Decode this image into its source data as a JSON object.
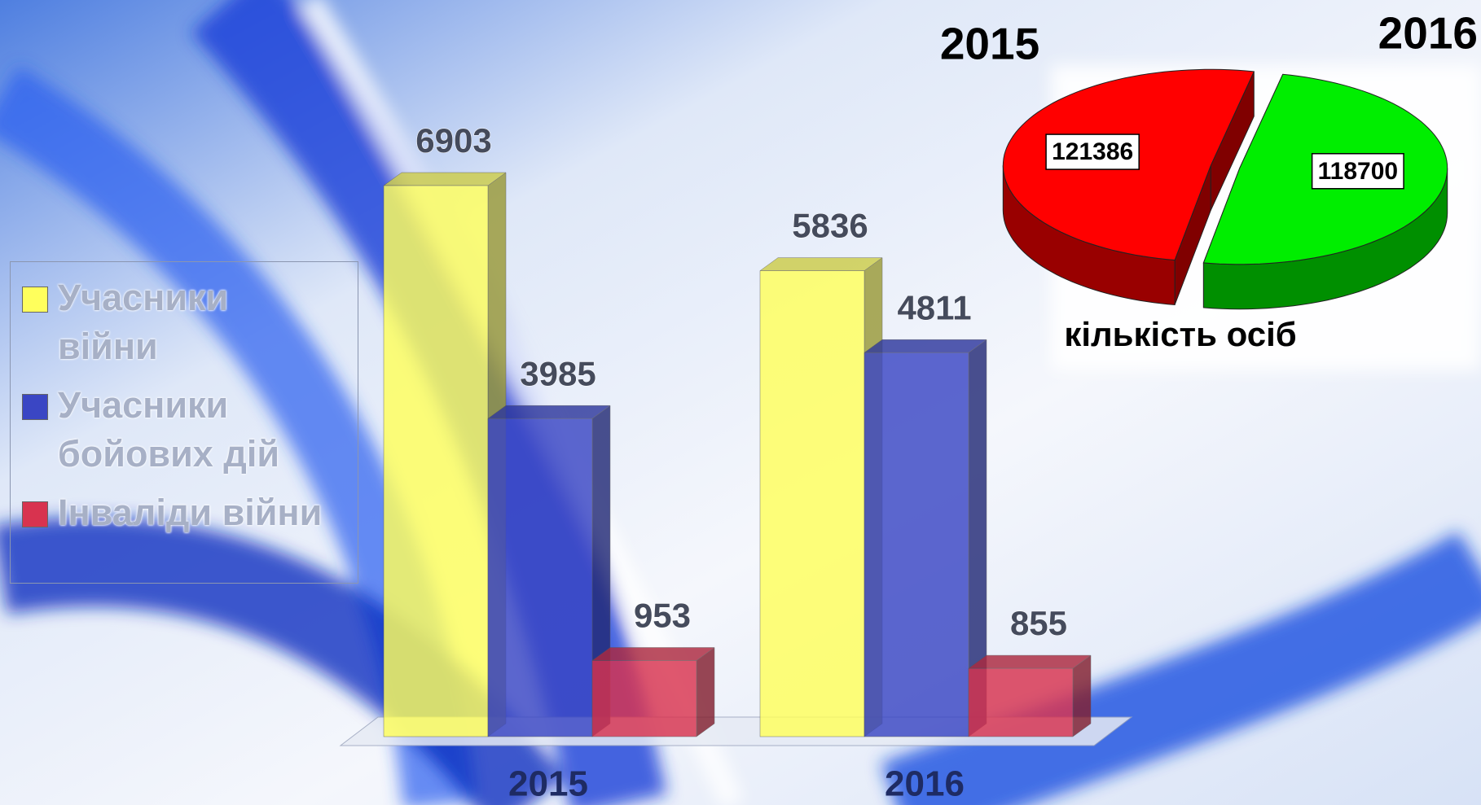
{
  "chart_data": [
    {
      "type": "bar",
      "categories": [
        "2015",
        "2016"
      ],
      "series": [
        {
          "name": "Учасники війни",
          "color": "#ffff5c",
          "values": [
            6903,
            5836
          ]
        },
        {
          "name": "Учасники бойових дій",
          "color": "#3a46c4",
          "values": [
            3985,
            4811
          ]
        },
        {
          "name": "Інваліди війни",
          "color": "#d8334f",
          "values": [
            953,
            855
          ]
        }
      ]
    },
    {
      "type": "pie",
      "title": "кількість осіб",
      "categories": [
        "2015",
        "2016"
      ],
      "values": [
        121386,
        118700
      ],
      "colors": [
        "#ff0000",
        "#00ee00"
      ]
    }
  ]
}
